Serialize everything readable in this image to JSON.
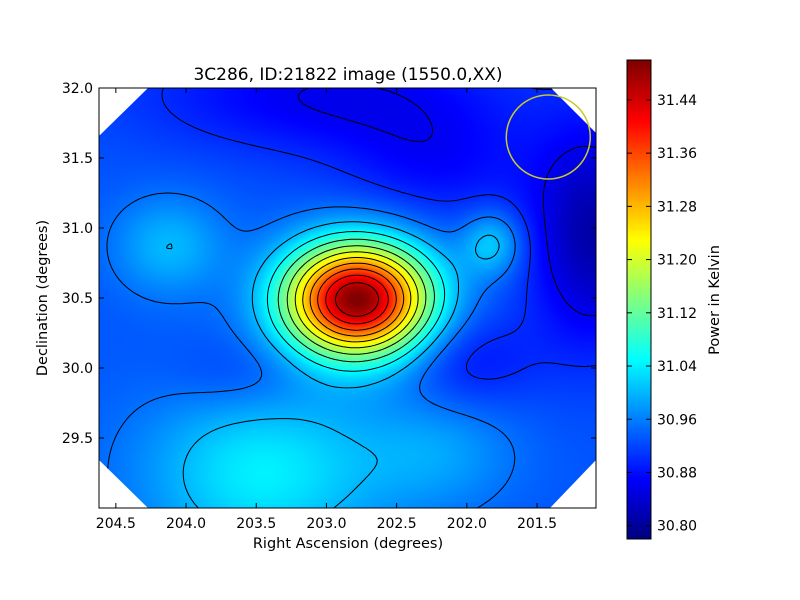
{
  "chart_data": {
    "type": "heatmap",
    "title": "3C286, ID:21822 image (1550.0,XX)",
    "xlabel": "Right Ascension (degrees)",
    "ylabel": "Declination (degrees)",
    "colorbar_label": "Power in Kelvin",
    "xlim": [
      204.62,
      201.08
    ],
    "ylim": [
      29.0,
      32.0
    ],
    "x_ticks": [
      204.5,
      204.0,
      203.5,
      203.0,
      202.5,
      202.0,
      201.5
    ],
    "x_tick_labels": [
      "204.5",
      "204.0",
      "203.5",
      "203.0",
      "202.5",
      "202.0",
      "201.5"
    ],
    "y_ticks": [
      29.5,
      30.0,
      30.5,
      31.0,
      31.5,
      32.0
    ],
    "y_tick_labels": [
      "29.5",
      "30.0",
      "30.5",
      "31.0",
      "31.5",
      "32.0"
    ],
    "colorbar_range": [
      30.78,
      31.5
    ],
    "colorbar_ticks": [
      30.8,
      30.88,
      30.96,
      31.04,
      31.12,
      31.2,
      31.28,
      31.36,
      31.44
    ],
    "colorbar_tick_labels": [
      "30.80",
      "30.88",
      "30.96",
      "31.04",
      "31.12",
      "31.20",
      "31.28",
      "31.36",
      "31.44"
    ],
    "colormap": "jet",
    "background_level": 30.93,
    "features": [
      {
        "kind": "peak",
        "ra": 202.78,
        "dec": 30.49,
        "amplitude": 0.57,
        "sigma_ra": 0.36,
        "sigma_dec": 0.28
      },
      {
        "kind": "peak",
        "ra": 201.82,
        "dec": 30.89,
        "amplitude": 0.09,
        "sigma_ra": 0.15,
        "sigma_dec": 0.16
      },
      {
        "kind": "peak",
        "ra": 204.12,
        "dec": 30.87,
        "amplitude": 0.07,
        "sigma_ra": 0.28,
        "sigma_dec": 0.25
      },
      {
        "kind": "peak",
        "ra": 203.45,
        "dec": 29.25,
        "amplitude": 0.11,
        "sigma_ra": 0.6,
        "sigma_dec": 0.45
      },
      {
        "kind": "peak",
        "ra": 202.2,
        "dec": 29.4,
        "amplitude": 0.05,
        "sigma_ra": 0.4,
        "sigma_dec": 0.3
      },
      {
        "kind": "trough",
        "ra": 201.1,
        "dec": 30.95,
        "amplitude": -0.12,
        "sigma_ra": 0.32,
        "sigma_dec": 0.55
      },
      {
        "kind": "trough",
        "ra": 203.0,
        "dec": 31.95,
        "amplitude": -0.07,
        "sigma_ra": 0.9,
        "sigma_dec": 0.3
      },
      {
        "kind": "trough",
        "ra": 202.2,
        "dec": 31.45,
        "amplitude": -0.05,
        "sigma_ra": 0.5,
        "sigma_dec": 0.3
      },
      {
        "kind": "trough",
        "ra": 202.0,
        "dec": 30.05,
        "amplitude": -0.05,
        "sigma_ra": 0.35,
        "sigma_dec": 0.25
      },
      {
        "kind": "trough",
        "ra": 203.6,
        "dec": 29.95,
        "amplitude": -0.03,
        "sigma_ra": 0.35,
        "sigma_dec": 0.2
      }
    ],
    "contour_levels": [
      30.86,
      30.9,
      30.95,
      31.0,
      31.05,
      31.1,
      31.15,
      31.2,
      31.25,
      31.3,
      31.35,
      31.4,
      31.45
    ],
    "beam_circle": {
      "ra": 201.42,
      "dec": 31.65,
      "radius_deg": 0.3,
      "color": "#c8c832"
    },
    "contour_color": "#000000",
    "grid": false
  }
}
